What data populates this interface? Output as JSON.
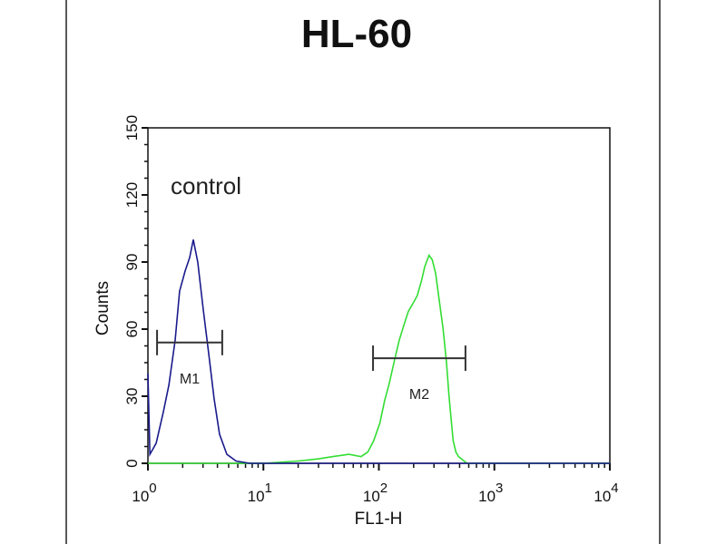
{
  "chart_data": {
    "type": "line",
    "title": "HL-60",
    "xlabel": "FL1-H",
    "ylabel": "Counts",
    "x_scale": "log",
    "xlim": [
      1,
      10000
    ],
    "ylim": [
      0,
      150
    ],
    "x_ticks": [
      {
        "base": "10",
        "exp": "0",
        "value": 1
      },
      {
        "base": "10",
        "exp": "1",
        "value": 10
      },
      {
        "base": "10",
        "exp": "2",
        "value": 100
      },
      {
        "base": "10",
        "exp": "3",
        "value": 1000
      },
      {
        "base": "10",
        "exp": "4",
        "value": 10000
      }
    ],
    "y_ticks": [
      "0",
      "30",
      "60",
      "90",
      "120",
      "150"
    ],
    "annotation": "control",
    "grid": false,
    "series": [
      {
        "color": "#1a1a8c",
        "x": [
          1.0,
          1.04,
          1.18,
          1.36,
          1.52,
          1.72,
          1.88,
          2.1,
          2.3,
          2.47,
          2.7,
          3.01,
          3.36,
          3.74,
          4.17,
          4.83,
          5.79,
          7.6,
          11.9,
          100,
          1000,
          10000
        ],
        "y": [
          40,
          4,
          9,
          23,
          35,
          55,
          77,
          86,
          92,
          100,
          90,
          69,
          49,
          29,
          13,
          4,
          1,
          0,
          0,
          0,
          0,
          0
        ]
      },
      {
        "color": "#33dd33",
        "x": [
          1,
          10,
          20,
          30,
          40,
          55,
          70,
          80,
          90,
          102,
          112,
          122,
          135,
          150,
          165,
          180,
          200,
          215,
          235,
          250,
          272,
          290,
          310,
          335,
          360,
          385,
          405,
          425,
          440,
          465,
          490,
          580,
          1000,
          10000
        ],
        "y": [
          0,
          0,
          1,
          2,
          3,
          4,
          3,
          5,
          10,
          18,
          28,
          35,
          45,
          55,
          62,
          68,
          72,
          75,
          82,
          88,
          93,
          91,
          85,
          72,
          60,
          45,
          30,
          18,
          10,
          5,
          3,
          0,
          0,
          0
        ]
      }
    ],
    "markers": [
      {
        "label": "M1",
        "x_start": 1.2,
        "x_end": 4.4,
        "y": 54
      },
      {
        "label": "M2",
        "x_start": 89,
        "x_end": 562,
        "y": 47
      }
    ]
  }
}
